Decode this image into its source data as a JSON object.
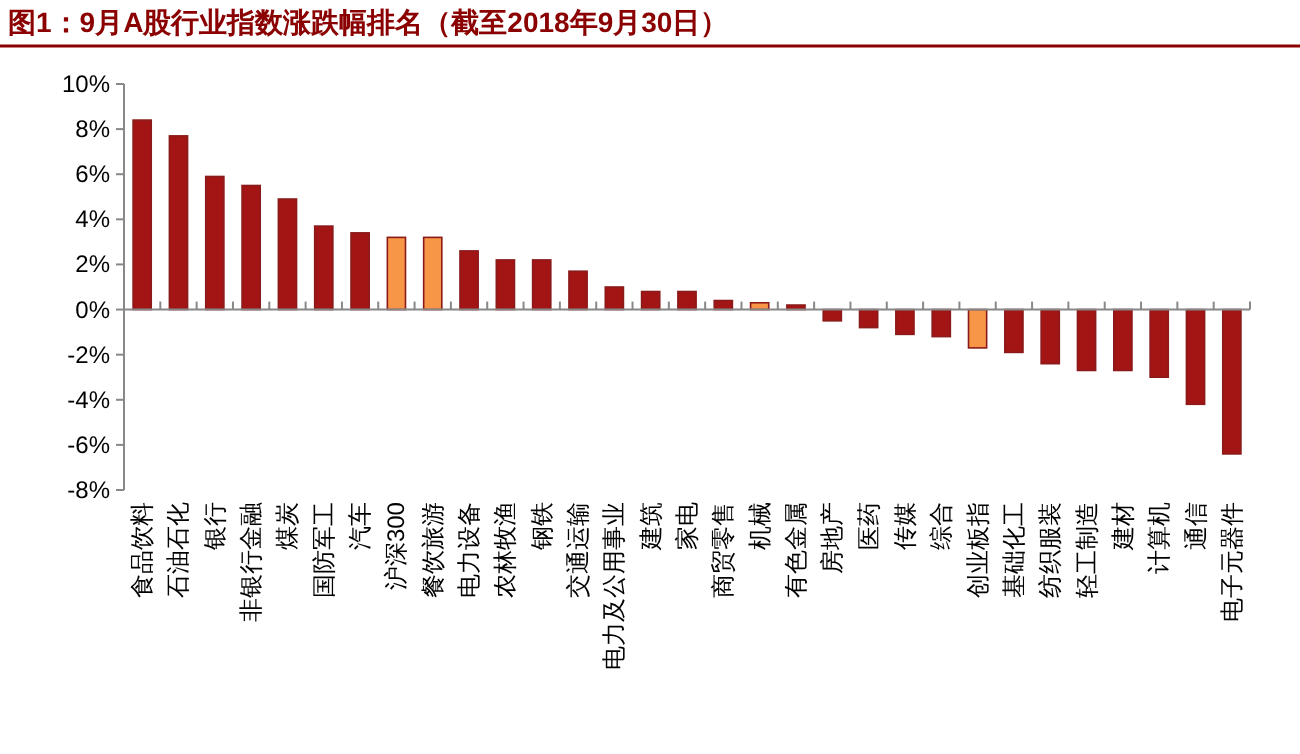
{
  "chart_data": {
    "type": "bar",
    "title": "图1：9月A股行业指数涨跌幅排名（截至2018年9月30日）",
    "categories": [
      "食品饮料",
      "石油石化",
      "银行",
      "非银行金融",
      "煤炭",
      "国防军工",
      "汽车",
      "沪深300",
      "餐饮旅游",
      "电力设备",
      "农林牧渔",
      "钢铁",
      "交通运输",
      "电力及公用事业",
      "建筑",
      "家电",
      "商贸零售",
      "机械",
      "有色金属",
      "房地产",
      "医药",
      "传媒",
      "综合",
      "创业板指",
      "基础化工",
      "纺织服装",
      "轻工制造",
      "建材",
      "计算机",
      "通信",
      "电子元器件"
    ],
    "values": [
      8.4,
      7.7,
      5.9,
      5.5,
      4.9,
      3.7,
      3.4,
      3.2,
      3.2,
      2.6,
      2.2,
      2.2,
      1.7,
      1.0,
      0.8,
      0.8,
      0.4,
      0.3,
      0.2,
      -0.5,
      -0.8,
      -1.1,
      -1.2,
      -1.7,
      -1.9,
      -2.4,
      -2.7,
      -2.7,
      -3.0,
      -4.2,
      -6.4
    ],
    "colors": [
      "#a31515",
      "#a31515",
      "#a31515",
      "#a31515",
      "#a31515",
      "#a31515",
      "#a31515",
      "#f79646",
      "#f79646",
      "#a31515",
      "#a31515",
      "#a31515",
      "#a31515",
      "#a31515",
      "#a31515",
      "#a31515",
      "#a31515",
      "#f79646",
      "#a31515",
      "#a31515",
      "#a31515",
      "#a31515",
      "#a31515",
      "#f79646",
      "#a31515",
      "#a31515",
      "#a31515",
      "#a31515",
      "#a31515",
      "#a31515",
      "#a31515"
    ],
    "ylim": [
      -8,
      10
    ],
    "yticks": [
      {
        "value": -8,
        "label": "-8%"
      },
      {
        "value": -6,
        "label": "-6%"
      },
      {
        "value": -4,
        "label": "-4%"
      },
      {
        "value": -2,
        "label": "-2%"
      },
      {
        "value": 0,
        "label": "0%"
      },
      {
        "value": 2,
        "label": "2%"
      },
      {
        "value": 4,
        "label": "4%"
      },
      {
        "value": 6,
        "label": "6%"
      },
      {
        "value": 8,
        "label": "8%"
      },
      {
        "value": 10,
        "label": "10%"
      }
    ]
  }
}
